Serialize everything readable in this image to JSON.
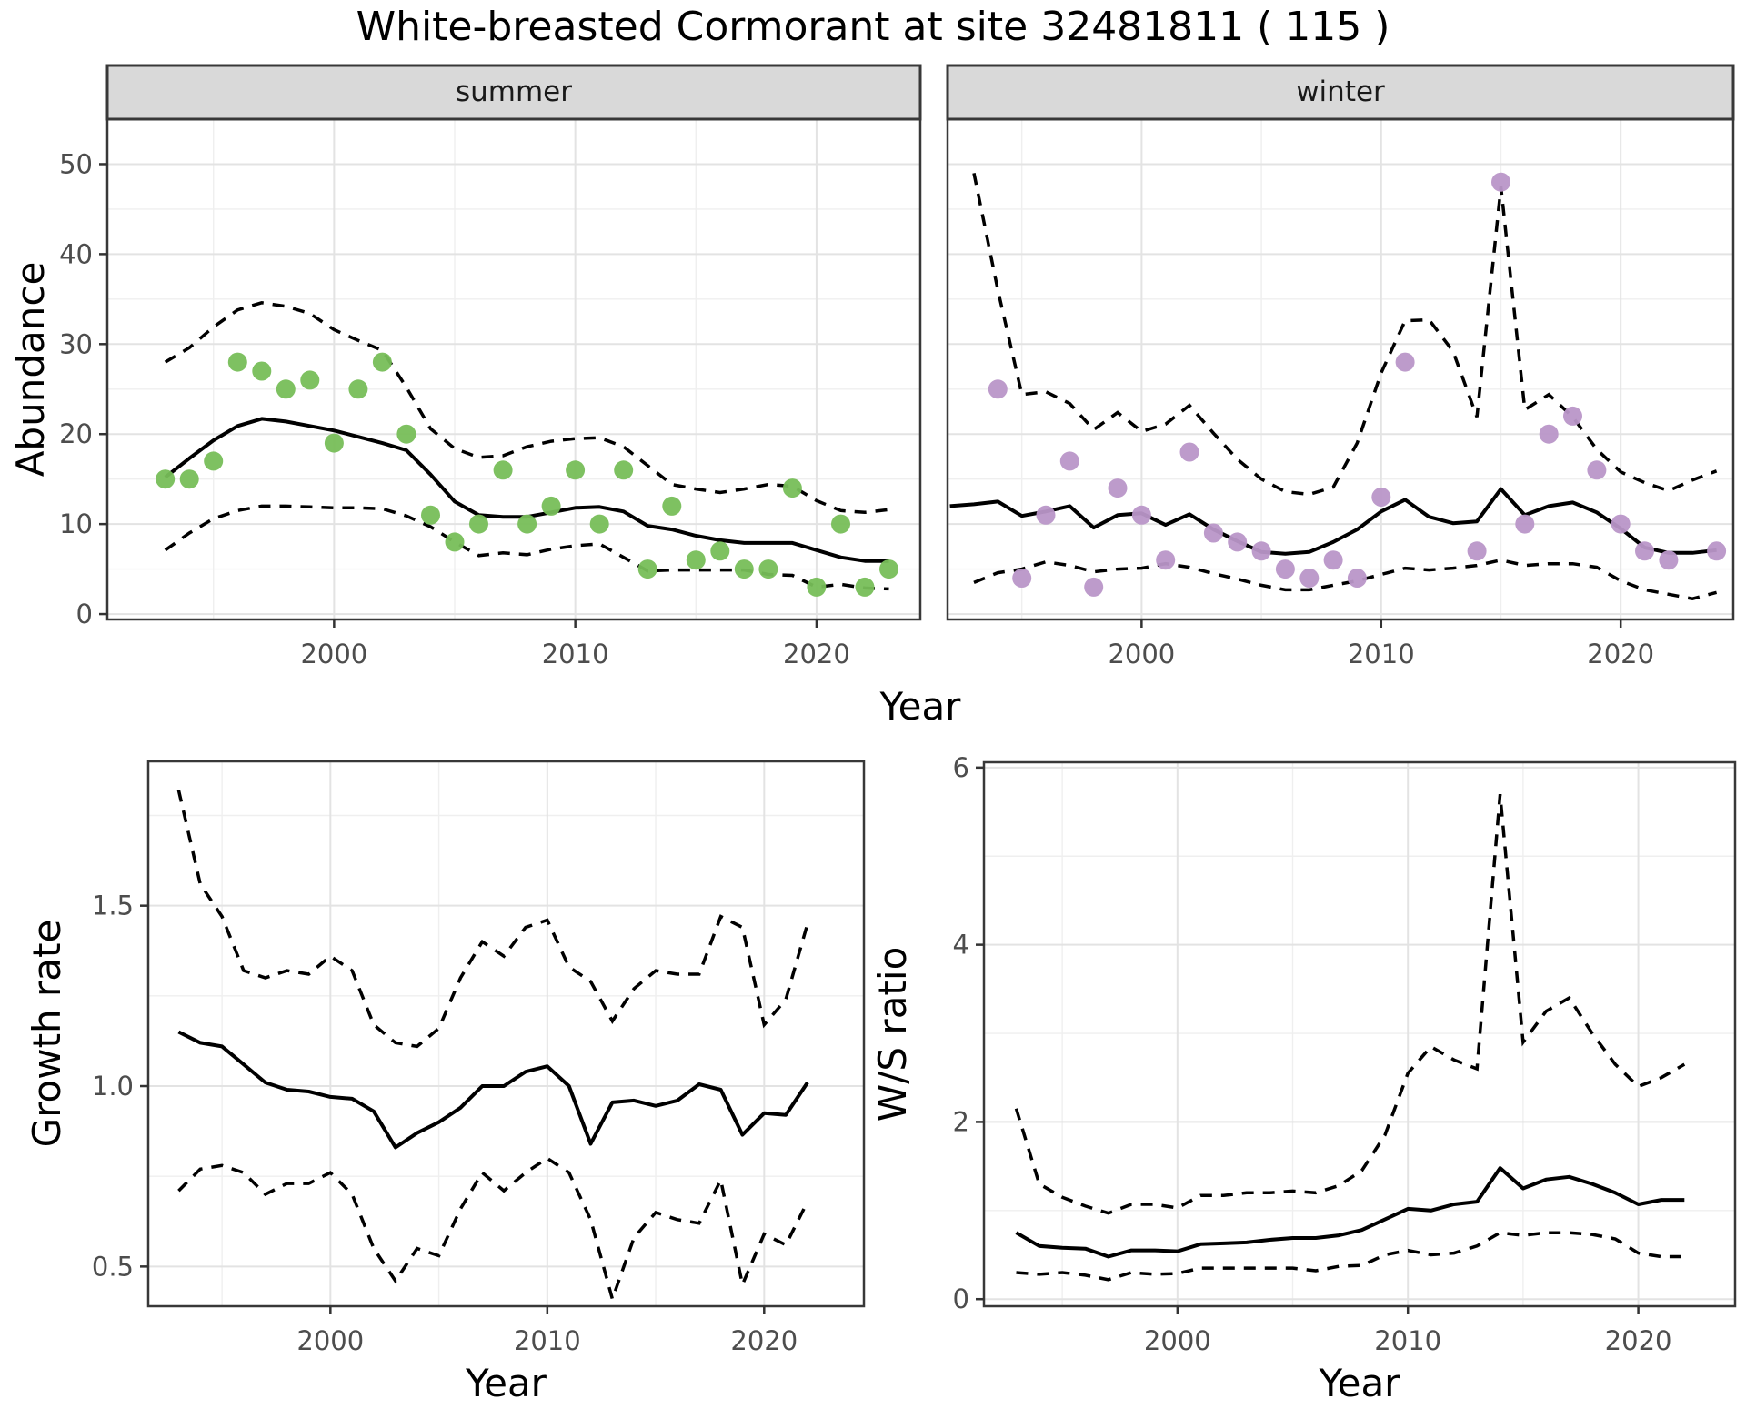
{
  "title": "White-breasted Cormorant at site 32481811 ( 115 )",
  "facet_labels": {
    "summer": "summer",
    "winter": "winter"
  },
  "axis_titles": {
    "abundance": "Abundance",
    "year": "Year",
    "growth_rate": "Growth rate",
    "ws_ratio": "W/S ratio"
  },
  "colors": {
    "summer_point": "#77BE59",
    "winter_point": "#B996C8",
    "line": "#000000",
    "strip_bg": "#D9D9D9",
    "panel_border": "#383838",
    "grid_major": "#E3E3E3",
    "grid_minor": "#EFEFEF",
    "tick_text": "#4D4D4D"
  },
  "chart_data": [
    {
      "id": "abundance_summer",
      "type": "scatter",
      "facet": "summer",
      "ylabel": "Abundance",
      "xlabel": "Year",
      "xlim": [
        1990.6,
        2024.3
      ],
      "ylim": [
        -0.6,
        55.0
      ],
      "x_major": [
        2000,
        2010,
        2020
      ],
      "x_major_labels": [
        "2000",
        "2010",
        "2020"
      ],
      "x_minor": [
        1995,
        2005,
        2015
      ],
      "y_major": [
        0,
        10,
        20,
        30,
        40,
        50
      ],
      "y_major_labels": [
        "0",
        "10",
        "20",
        "30",
        "40",
        "50"
      ],
      "y_minor": [
        5,
        15,
        25,
        35,
        45
      ],
      "show_y_labels": true,
      "point_color": "#77BE59",
      "points": [
        [
          1993,
          15
        ],
        [
          1994,
          15
        ],
        [
          1995,
          17
        ],
        [
          1996,
          28
        ],
        [
          1997,
          27
        ],
        [
          1998,
          25
        ],
        [
          1999,
          26
        ],
        [
          2000,
          19
        ],
        [
          2001,
          25
        ],
        [
          2002,
          28
        ],
        [
          2003,
          20
        ],
        [
          2004,
          11
        ],
        [
          2005,
          8
        ],
        [
          2006,
          10
        ],
        [
          2007,
          16
        ],
        [
          2008,
          10
        ],
        [
          2009,
          12
        ],
        [
          2010,
          16
        ],
        [
          2011,
          10
        ],
        [
          2012,
          16
        ],
        [
          2013,
          5
        ],
        [
          2014,
          12
        ],
        [
          2015,
          6
        ],
        [
          2016,
          7
        ],
        [
          2017,
          5
        ],
        [
          2018,
          5
        ],
        [
          2019,
          14
        ],
        [
          2020,
          3
        ],
        [
          2021,
          10
        ],
        [
          2022,
          3
        ],
        [
          2023,
          5
        ]
      ],
      "fit": {
        "start_year": 1993,
        "values": [
          15.2,
          17.3,
          19.3,
          20.9,
          21.7,
          21.4,
          20.9,
          20.4,
          19.7,
          19.0,
          18.2,
          15.5,
          12.5,
          11.0,
          10.8,
          10.8,
          11.3,
          11.8,
          11.9,
          11.4,
          9.8,
          9.4,
          8.7,
          8.2,
          7.9,
          7.9,
          7.9,
          7.1,
          6.3,
          5.9,
          5.9
        ]
      },
      "ci_upper": {
        "start_year": 1993,
        "values": [
          28.0,
          29.6,
          31.9,
          33.8,
          34.6,
          34.2,
          33.4,
          31.6,
          30.4,
          29.3,
          25.2,
          20.6,
          18.4,
          17.4,
          17.6,
          18.6,
          19.2,
          19.5,
          19.6,
          18.6,
          16.5,
          14.4,
          13.9,
          13.5,
          13.9,
          14.4,
          14.2,
          12.6,
          11.5,
          11.3,
          11.6
        ]
      },
      "ci_lower": {
        "start_year": 1993,
        "values": [
          7.1,
          9.0,
          10.6,
          11.5,
          12.0,
          12.0,
          11.9,
          11.8,
          11.8,
          11.7,
          10.9,
          9.7,
          8.0,
          6.5,
          6.8,
          6.6,
          7.2,
          7.6,
          7.8,
          6.3,
          4.8,
          4.9,
          4.9,
          4.9,
          4.9,
          4.4,
          4.3,
          3.0,
          3.3,
          2.9,
          2.8
        ]
      }
    },
    {
      "id": "abundance_winter",
      "type": "scatter",
      "facet": "winter",
      "ylabel": "Abundance",
      "xlabel": "Year",
      "xlim": [
        1991.9,
        2024.7
      ],
      "ylim": [
        -0.6,
        55.0
      ],
      "x_major": [
        2000,
        2010,
        2020
      ],
      "x_major_labels": [
        "2000",
        "2010",
        "2020"
      ],
      "x_minor": [
        1995,
        2005,
        2015
      ],
      "y_major": [
        0,
        10,
        20,
        30,
        40,
        50
      ],
      "y_major_labels": [
        "0",
        "10",
        "20",
        "30",
        "40",
        "50"
      ],
      "y_minor": [
        5,
        15,
        25,
        35,
        45
      ],
      "show_y_labels": false,
      "point_color": "#B996C8",
      "points": [
        [
          1994,
          25
        ],
        [
          1995,
          4
        ],
        [
          1996,
          11
        ],
        [
          1997,
          17
        ],
        [
          1998,
          3
        ],
        [
          1999,
          14
        ],
        [
          2000,
          11
        ],
        [
          2001,
          6
        ],
        [
          2002,
          18
        ],
        [
          2003,
          9
        ],
        [
          2004,
          8
        ],
        [
          2005,
          7
        ],
        [
          2006,
          5
        ],
        [
          2007,
          4
        ],
        [
          2008,
          6
        ],
        [
          2009,
          4
        ],
        [
          2010,
          13
        ],
        [
          2011,
          28
        ],
        [
          2014,
          7
        ],
        [
          2015,
          48
        ],
        [
          2016,
          10
        ],
        [
          2017,
          20
        ],
        [
          2018,
          22
        ],
        [
          2019,
          16
        ],
        [
          2020,
          10
        ],
        [
          2021,
          7
        ],
        [
          2022,
          6
        ],
        [
          2024,
          7
        ]
      ],
      "fit": {
        "start_year": 1992,
        "values": [
          12.0,
          12.2,
          12.5,
          10.9,
          11.4,
          12.0,
          9.6,
          11.0,
          11.2,
          9.9,
          11.1,
          9.4,
          8.1,
          6.9,
          6.7,
          6.9,
          8.0,
          9.4,
          11.4,
          12.7,
          10.8,
          10.1,
          10.3,
          13.9,
          11.0,
          12.0,
          12.4,
          11.3,
          9.5,
          7.4,
          6.8,
          6.8,
          7.1
        ]
      },
      "ci_upper": {
        "start_year": 1993,
        "values": [
          49.0,
          36.0,
          24.4,
          24.7,
          23.4,
          20.5,
          22.4,
          20.3,
          21.1,
          23.2,
          20.1,
          17.2,
          15.0,
          13.6,
          13.3,
          14.1,
          19.0,
          26.8,
          32.6,
          32.7,
          29.2,
          21.9,
          47.5,
          22.7,
          24.4,
          21.9,
          18.3,
          15.8,
          14.6,
          13.7,
          14.9,
          15.9
        ]
      },
      "ci_lower": {
        "start_year": 1993,
        "values": [
          3.5,
          4.6,
          5.0,
          5.8,
          5.4,
          4.7,
          5.0,
          5.1,
          5.6,
          5.2,
          4.5,
          3.9,
          3.2,
          2.7,
          2.7,
          3.2,
          3.7,
          4.4,
          5.1,
          4.9,
          5.1,
          5.4,
          6.0,
          5.4,
          5.6,
          5.6,
          5.2,
          3.7,
          2.7,
          2.2,
          1.7,
          2.4
        ]
      }
    },
    {
      "id": "growth_rate",
      "type": "line",
      "ylabel": "Growth rate",
      "xlabel": "Year",
      "xlim": [
        1991.6,
        2024.6
      ],
      "ylim": [
        0.39,
        1.9
      ],
      "x_major": [
        2000,
        2010,
        2020
      ],
      "x_major_labels": [
        "2000",
        "2010",
        "2020"
      ],
      "x_minor": [
        1995,
        2005,
        2015
      ],
      "y_major": [
        0.5,
        1.0,
        1.5
      ],
      "y_major_labels": [
        "0.5",
        "1.0",
        "1.5"
      ],
      "y_minor": [
        0.75,
        1.25,
        1.75
      ],
      "show_y_labels": true,
      "points": [],
      "fit": {
        "start_year": 1993,
        "values": [
          1.15,
          1.12,
          1.11,
          1.06,
          1.01,
          0.99,
          0.985,
          0.97,
          0.965,
          0.93,
          0.83,
          0.87,
          0.9,
          0.94,
          1.0,
          1.0,
          1.04,
          1.055,
          1.0,
          0.84,
          0.955,
          0.96,
          0.945,
          0.96,
          1.005,
          0.99,
          0.865,
          0.925,
          0.92,
          1.01
        ]
      },
      "ci_upper": {
        "start_year": 1993,
        "values": [
          1.82,
          1.56,
          1.47,
          1.32,
          1.3,
          1.32,
          1.31,
          1.36,
          1.32,
          1.17,
          1.12,
          1.11,
          1.16,
          1.3,
          1.4,
          1.36,
          1.44,
          1.46,
          1.33,
          1.29,
          1.18,
          1.27,
          1.32,
          1.31,
          1.31,
          1.47,
          1.44,
          1.17,
          1.24,
          1.45
        ]
      },
      "ci_lower": {
        "start_year": 1993,
        "values": [
          0.71,
          0.77,
          0.78,
          0.76,
          0.7,
          0.73,
          0.73,
          0.76,
          0.7,
          0.55,
          0.46,
          0.55,
          0.53,
          0.66,
          0.76,
          0.71,
          0.76,
          0.8,
          0.76,
          0.63,
          0.41,
          0.58,
          0.65,
          0.63,
          0.62,
          0.74,
          0.45,
          0.59,
          0.56,
          0.68
        ]
      }
    },
    {
      "id": "ws_ratio",
      "type": "line",
      "ylabel": "W/S ratio",
      "xlabel": "Year",
      "xlim": [
        1991.6,
        2024.2
      ],
      "ylim": [
        -0.08,
        6.06
      ],
      "x_major": [
        2000,
        2010,
        2020
      ],
      "x_major_labels": [
        "2000",
        "2010",
        "2020"
      ],
      "x_minor": [
        1995,
        2005,
        2015
      ],
      "y_major": [
        0,
        2,
        4,
        6
      ],
      "y_major_labels": [
        "0",
        "2",
        "4",
        "6"
      ],
      "y_minor": [
        1,
        3,
        5
      ],
      "show_y_labels": true,
      "points": [],
      "fit": {
        "start_year": 1993,
        "values": [
          0.75,
          0.6,
          0.58,
          0.57,
          0.48,
          0.55,
          0.55,
          0.54,
          0.62,
          0.63,
          0.64,
          0.67,
          0.69,
          0.69,
          0.72,
          0.78,
          0.9,
          1.02,
          1.0,
          1.07,
          1.1,
          1.48,
          1.25,
          1.35,
          1.38,
          1.3,
          1.2,
          1.07,
          1.12,
          1.12
        ]
      },
      "ci_upper": {
        "start_year": 1993,
        "values": [
          2.15,
          1.3,
          1.15,
          1.05,
          0.97,
          1.07,
          1.07,
          1.03,
          1.17,
          1.17,
          1.2,
          1.2,
          1.22,
          1.2,
          1.28,
          1.45,
          1.85,
          2.55,
          2.85,
          2.7,
          2.6,
          5.7,
          2.9,
          3.25,
          3.4,
          3.0,
          2.65,
          2.4,
          2.5,
          2.65
        ]
      },
      "ci_lower": {
        "start_year": 1993,
        "values": [
          0.3,
          0.28,
          0.3,
          0.27,
          0.22,
          0.3,
          0.28,
          0.29,
          0.35,
          0.35,
          0.35,
          0.35,
          0.35,
          0.32,
          0.37,
          0.38,
          0.5,
          0.55,
          0.5,
          0.52,
          0.6,
          0.75,
          0.72,
          0.75,
          0.75,
          0.73,
          0.68,
          0.52,
          0.48,
          0.48
        ]
      }
    }
  ]
}
